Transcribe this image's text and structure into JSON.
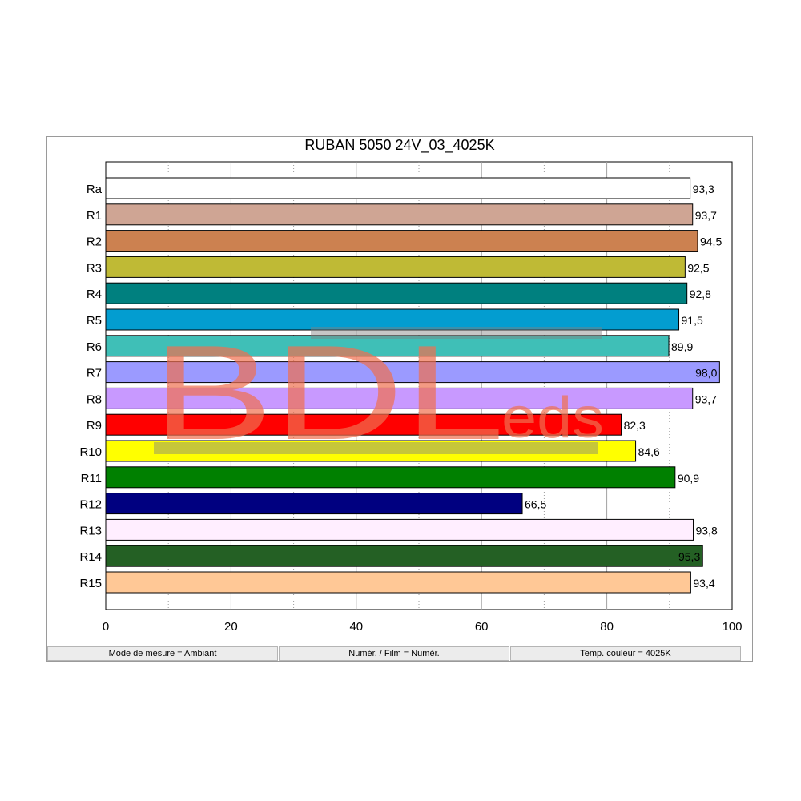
{
  "chart_data": {
    "type": "bar",
    "orientation": "horizontal",
    "title": "RUBAN 5050 24V_03_4025K",
    "categories": [
      "Ra",
      "R1",
      "R2",
      "R3",
      "R4",
      "R5",
      "R6",
      "R7",
      "R8",
      "R9",
      "R10",
      "R11",
      "R12",
      "R13",
      "R14",
      "R15"
    ],
    "values": [
      93.3,
      93.7,
      94.5,
      92.5,
      92.8,
      91.5,
      89.9,
      98.0,
      93.7,
      82.3,
      84.6,
      90.9,
      66.5,
      93.8,
      95.3,
      93.4
    ],
    "value_labels": [
      "93,3",
      "93,7",
      "94,5",
      "92,5",
      "92,8",
      "91,5",
      "89,9",
      "98,0",
      "93,7",
      "82,3",
      "84,6",
      "90,9",
      "66,5",
      "93,8",
      "95,3",
      "93,4"
    ],
    "colors": [
      "#ffffff",
      "#cfa594",
      "#cc8150",
      "#bfba35",
      "#00807f",
      "#039dd0",
      "#3fbfb7",
      "#9b9aff",
      "#c899ff",
      "#ff0000",
      "#ffff00",
      "#008000",
      "#000080",
      "#ffeeff",
      "#246024",
      "#ffc896"
    ],
    "xlim": [
      0,
      100
    ],
    "x_ticks": [
      "0",
      "20",
      "40",
      "60",
      "80",
      "100"
    ],
    "grid": "vertical-dotted",
    "xlabel": "",
    "ylabel": ""
  },
  "watermark": {
    "text_main": "BDL",
    "text_sub": "eds"
  },
  "status_bar": {
    "mode": "Mode de mesure = Ambiant",
    "film": "Numér. / Film = Numér.",
    "temp": "Temp. couleur = 4025K"
  }
}
